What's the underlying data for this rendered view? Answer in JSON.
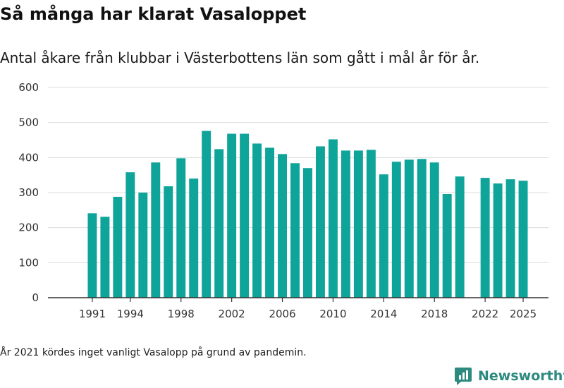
{
  "chart_data": {
    "type": "bar",
    "title": "Så många har klarat Vasaloppet",
    "subtitle": "Antal åkare från klubbar i Västerbottens län som gått i mål år för år.",
    "note": "År 2021 kördes inget vanligt Vasalopp på grund av pandemin.",
    "bar_color": "#0fa49a",
    "x": [
      1991,
      1992,
      1993,
      1994,
      1995,
      1996,
      1997,
      1998,
      1999,
      2000,
      2001,
      2002,
      2003,
      2004,
      2005,
      2006,
      2007,
      2008,
      2009,
      2010,
      2011,
      2012,
      2013,
      2014,
      2015,
      2016,
      2017,
      2018,
      2019,
      2020,
      2022,
      2023,
      2024,
      2025
    ],
    "values": [
      241,
      231,
      288,
      358,
      300,
      386,
      318,
      398,
      340,
      476,
      424,
      468,
      468,
      440,
      428,
      410,
      384,
      370,
      432,
      452,
      420,
      420,
      422,
      352,
      388,
      394,
      396,
      386,
      296,
      346,
      342,
      326,
      338,
      334
    ],
    "x_range": [
      1987.5,
      2027
    ],
    "x_ticks": [
      1991,
      1994,
      1998,
      2002,
      2006,
      2010,
      2014,
      2018,
      2022,
      2025
    ],
    "ylim": [
      0,
      600
    ],
    "y_ticks": [
      0,
      100,
      200,
      300,
      400,
      500,
      600
    ],
    "grid": true
  },
  "brand": {
    "name": "Newsworthy"
  }
}
